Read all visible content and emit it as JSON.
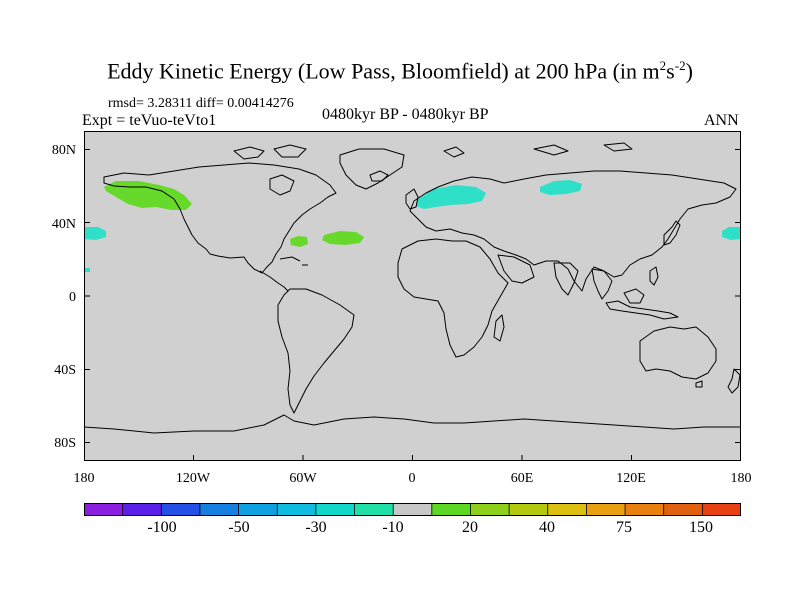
{
  "title": {
    "main": "Eddy Kinetic Energy (Low Pass, Bloomfield) at 200 hPa (in m",
    "sup1": "2",
    "mid": "s",
    "sup2": "-2",
    "end": ")"
  },
  "stats": "rmsd= 3.28311 diff= 0.00414276",
  "expt": "Expt = teVuo-teVto1",
  "period": "0480kyr BP - 0480kyr BP",
  "season": "ANN",
  "lat_labels": [
    "80N",
    "40N",
    "0",
    "40S",
    "80S"
  ],
  "lon_labels": [
    "180",
    "120W",
    "60W",
    "0",
    "60E",
    "120E",
    "180"
  ],
  "colorbar": {
    "labels": [
      "-100",
      "-50",
      "-30",
      "-10",
      "20",
      "40",
      "75",
      "150"
    ],
    "colors": [
      "#8a1fe0",
      "#5a1fe8",
      "#2550e8",
      "#1680e0",
      "#10a0e0",
      "#10bce0",
      "#10d8c8",
      "#20e0a8",
      "#c8c8c8",
      "#5cd823",
      "#8cd01a",
      "#b4c810",
      "#dcc010",
      "#e8a010",
      "#e88010",
      "#e06010",
      "#e84010"
    ]
  },
  "map": {
    "background": "#d0d0d0",
    "positive_color": "#66d92a",
    "negative_color": "#2ee0c8"
  }
}
